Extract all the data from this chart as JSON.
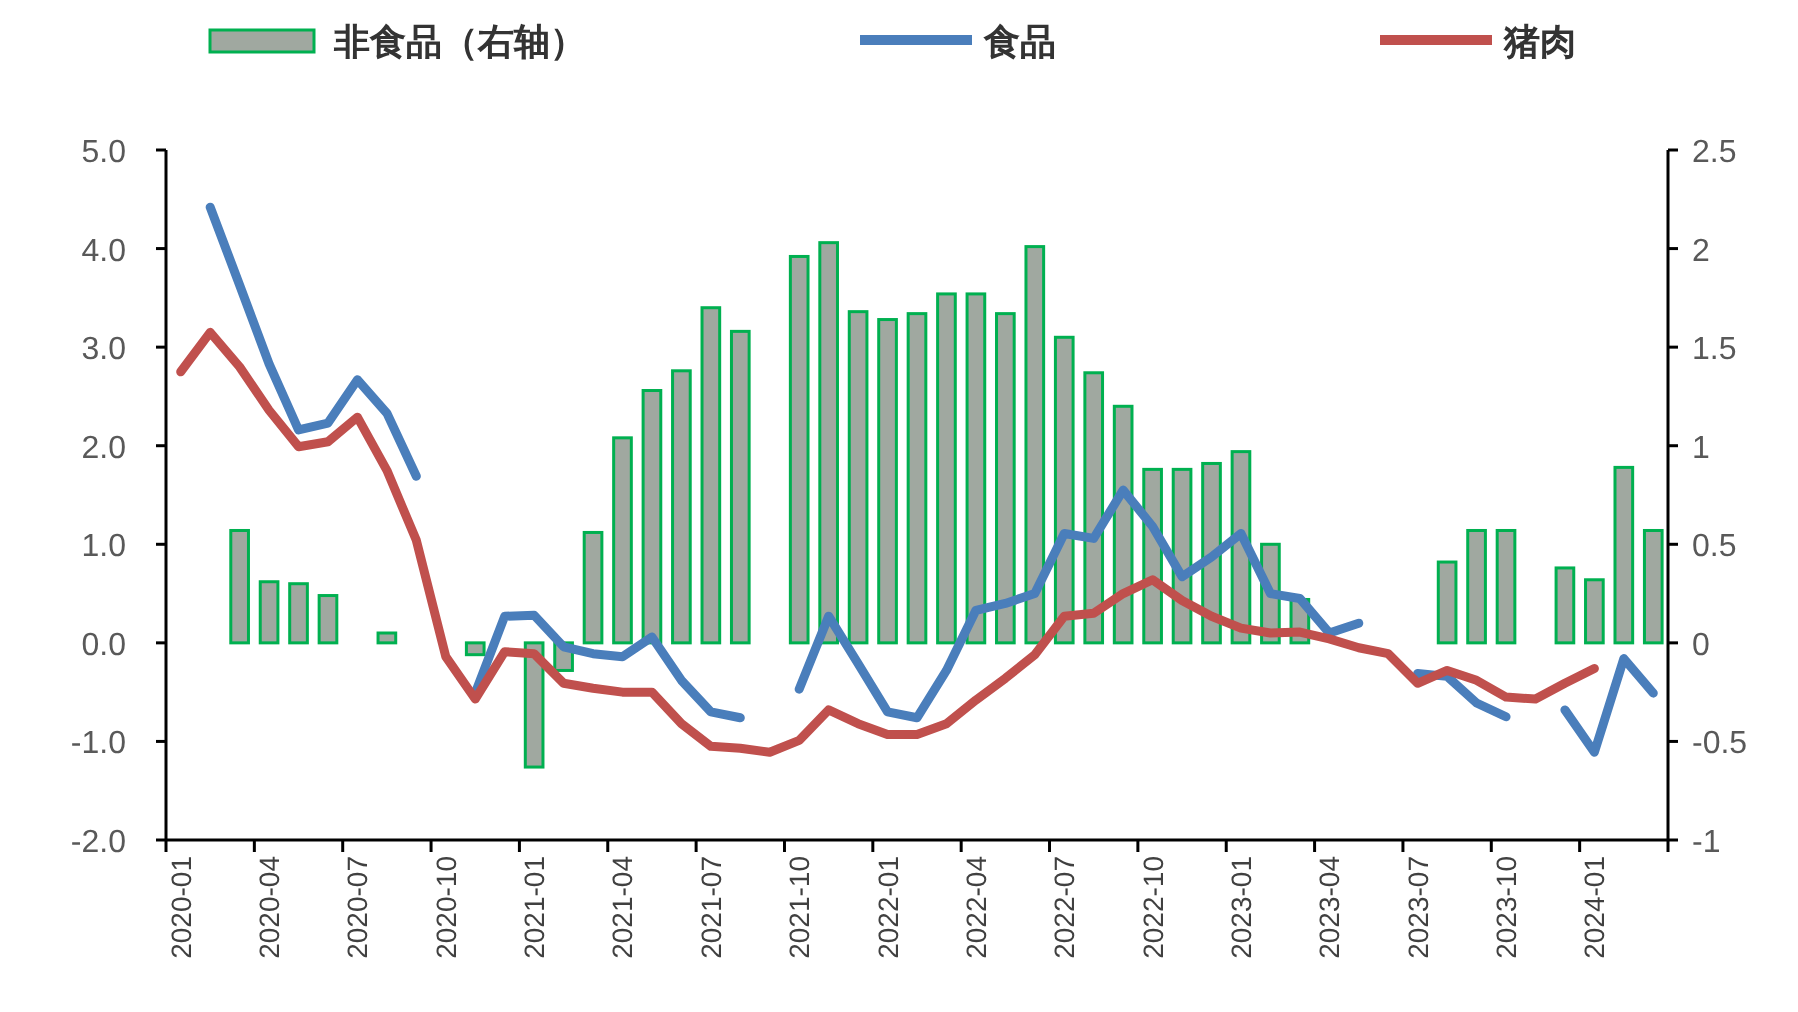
{
  "chart_data": {
    "type": "bar",
    "legend": "top",
    "grid": false,
    "categories": [
      "2020-01",
      null,
      null,
      "2020-04",
      null,
      null,
      "2020-07",
      null,
      null,
      "2020-10",
      null,
      null,
      "2021-01",
      null,
      null,
      "2021-04",
      null,
      null,
      "2021-07",
      null,
      null,
      "2021-10",
      null,
      null,
      "2022-01",
      null,
      null,
      "2022-04",
      null,
      null,
      "2022-07",
      null,
      null,
      "2022-10",
      null,
      null,
      "2023-01",
      null,
      null,
      "2023-04",
      null,
      null,
      "2023-07",
      null,
      null,
      "2023-10",
      null,
      null,
      "2024-01",
      null,
      null
    ],
    "ylim": [
      -2,
      5
    ],
    "yticks": [
      {
        "value": -2,
        "label": "-2.0"
      },
      {
        "value": -1,
        "label": "-1.0"
      },
      {
        "value": 0,
        "label": "0.0"
      },
      {
        "value": 1,
        "label": "1.0"
      },
      {
        "value": 2,
        "label": "2.0"
      },
      {
        "value": 3,
        "label": "3.0"
      },
      {
        "value": 4,
        "label": "4.0"
      },
      {
        "value": 5,
        "label": "5.0"
      }
    ],
    "y2lim": [
      -1,
      2.5
    ],
    "y2ticks": [
      {
        "value": -1,
        "label": "-1"
      },
      {
        "value": -0.5,
        "label": "-0.5"
      },
      0,
      {
        "value": 0.5,
        "label": "0.5"
      },
      1,
      {
        "value": 1.5,
        "label": "1.5"
      },
      2,
      {
        "value": 2.5,
        "label": "2.5"
      }
    ],
    "series": [
      {
        "name": "非食品（右轴）",
        "axis": "y2",
        "color": "#a0a8a0",
        "values": [
          null,
          null,
          0.57,
          0.31,
          0.3,
          0.24,
          null,
          0.05,
          null,
          null,
          -0.06,
          null,
          -0.63,
          -0.14,
          0.56,
          1.04,
          1.28,
          1.38,
          1.7,
          1.58,
          null,
          1.96,
          2.03,
          1.68,
          1.64,
          1.67,
          1.77,
          1.77,
          1.67,
          2.01,
          1.55,
          1.37,
          1.2,
          0.88,
          0.88,
          0.91,
          0.97,
          0.5,
          0.22,
          null,
          null,
          null,
          null,
          0.41,
          0.57,
          0.57,
          null,
          0.38,
          0.32,
          0.89,
          0.57
        ]
      },
      {
        "name": "食品",
        "type": "line",
        "color": "#4a7ebb",
        "values": [
          null,
          4.42,
          3.63,
          2.83,
          2.16,
          2.23,
          2.67,
          2.33,
          1.69,
          null,
          -0.51,
          0.27,
          0.28,
          -0.04,
          -0.11,
          -0.14,
          0.06,
          -0.38,
          -0.7,
          -0.76,
          null,
          -0.47,
          0.27,
          -0.21,
          -0.7,
          -0.76,
          -0.28,
          0.33,
          0.4,
          0.5,
          1.11,
          1.06,
          1.55,
          1.18,
          0.67,
          0.87,
          1.11,
          0.5,
          0.45,
          0.1,
          0.2,
          null,
          -0.31,
          -0.34,
          -0.61,
          -0.75,
          null,
          -0.68,
          -1.11,
          -0.16,
          -0.51
        ]
      },
      {
        "name": "猪肉",
        "type": "line",
        "color": "#c0504d",
        "values": [
          2.75,
          3.15,
          2.8,
          2.36,
          1.99,
          2.04,
          2.29,
          1.75,
          1.04,
          -0.14,
          -0.57,
          -0.09,
          -0.11,
          -0.41,
          -0.46,
          -0.5,
          -0.5,
          -0.82,
          -1.05,
          -1.07,
          -1.11,
          -0.99,
          -0.68,
          -0.82,
          -0.93,
          -0.93,
          -0.82,
          -0.58,
          -0.36,
          -0.12,
          0.27,
          0.3,
          0.5,
          0.64,
          0.43,
          0.27,
          0.15,
          0.1,
          0.11,
          0.04,
          -0.05,
          -0.11,
          -0.41,
          -0.28,
          -0.38,
          -0.55,
          -0.57,
          -0.41,
          -0.26,
          null,
          null
        ]
      }
    ]
  }
}
